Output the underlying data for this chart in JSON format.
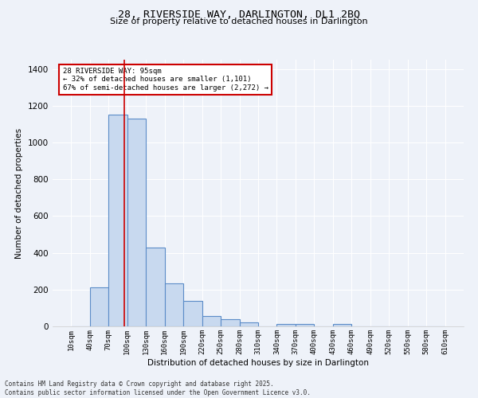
{
  "title1": "28, RIVERSIDE WAY, DARLINGTON, DL1 2BQ",
  "title2": "Size of property relative to detached houses in Darlington",
  "xlabel": "Distribution of detached houses by size in Darlington",
  "ylabel": "Number of detached properties",
  "bin_edges": [
    10,
    40,
    70,
    100,
    130,
    160,
    190,
    220,
    250,
    280,
    310,
    340,
    370,
    400,
    430,
    460,
    490,
    520,
    550,
    580,
    610
  ],
  "bar_heights": [
    0,
    210,
    1150,
    1130,
    430,
    235,
    140,
    58,
    38,
    20,
    0,
    12,
    12,
    0,
    12,
    0,
    0,
    0,
    0,
    0
  ],
  "bar_color": "#c8d9ef",
  "bar_edge_color": "#5b8cc8",
  "bar_edge_width": 0.8,
  "red_line_x": 95,
  "annotation_title": "28 RIVERSIDE WAY: 95sqm",
  "annotation_line1": "← 32% of detached houses are smaller (1,101)",
  "annotation_line2": "67% of semi-detached houses are larger (2,272) →",
  "annotation_box_color": "#ffffff",
  "annotation_box_edge": "#cc0000",
  "red_line_color": "#cc0000",
  "background_color": "#eef2f9",
  "grid_color": "#ffffff",
  "footer1": "Contains HM Land Registry data © Crown copyright and database right 2025.",
  "footer2": "Contains public sector information licensed under the Open Government Licence v3.0.",
  "ylim": [
    0,
    1450
  ],
  "yticks": [
    0,
    200,
    400,
    600,
    800,
    1000,
    1200,
    1400
  ]
}
